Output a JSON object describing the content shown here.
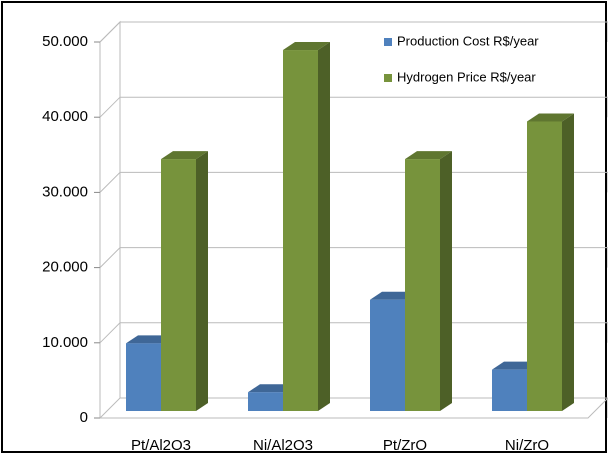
{
  "chart_data": {
    "type": "bar3d",
    "categories": [
      "Pt/Al2O3",
      "Ni/Al2O3",
      "Pt/ZrO",
      "Ni/ZrO"
    ],
    "series": [
      {
        "name": "Production Cost R$/year",
        "color": "#4f81bd",
        "values": [
          9000,
          2500,
          14800,
          5500
        ]
      },
      {
        "name": "Hydrogen Price R$/year",
        "color": "#77933c",
        "values": [
          33500,
          48000,
          33500,
          38500
        ]
      }
    ],
    "ylim": [
      0,
      50000
    ],
    "yticks": [
      0,
      {
        "value": 10000,
        "label": "10.000"
      },
      {
        "value": 20000,
        "label": "20.000"
      },
      {
        "value": 30000,
        "label": "30.000"
      },
      {
        "value": 40000,
        "label": "40.000"
      },
      {
        "value": 50000,
        "label": "50.000"
      }
    ],
    "grid": true,
    "legend": "top-right"
  }
}
